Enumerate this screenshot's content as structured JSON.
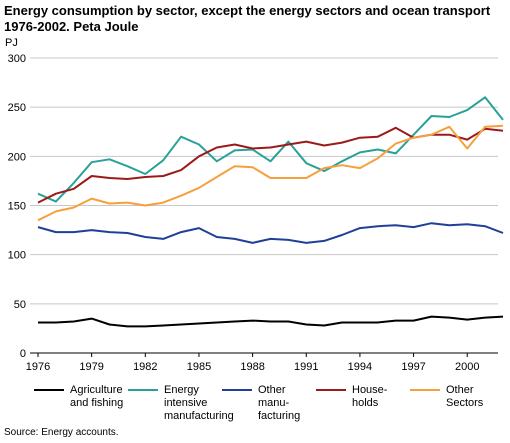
{
  "header": {
    "title_line1": "Energy consumption by sector, except the energy sectors and ocean transport",
    "title_line2": "1976-2002. Peta Joule"
  },
  "footer": {
    "source": "Source: Energy accounts."
  },
  "colors": {
    "agriculture": "#000000",
    "energy_intensive": "#2aa198",
    "other_manufacturing": "#1f3f99",
    "households": "#9b1b1b",
    "other_sectors": "#f5a03c",
    "grid": "#c8c8c8"
  },
  "chart_data": {
    "type": "line",
    "ylabel": "PJ",
    "ylim": [
      0,
      300
    ],
    "yticks": [
      0,
      50,
      100,
      150,
      200,
      250,
      300
    ],
    "xticks": [
      1976,
      1979,
      1982,
      1985,
      1988,
      1991,
      1994,
      1997,
      2000
    ],
    "grid": "horizontal",
    "legend_position": "bottom",
    "x": [
      1976,
      1977,
      1978,
      1979,
      1980,
      1981,
      1982,
      1983,
      1984,
      1985,
      1986,
      1987,
      1988,
      1989,
      1990,
      1991,
      1992,
      1993,
      1994,
      1995,
      1996,
      1997,
      1998,
      1999,
      2000,
      2001,
      2002
    ],
    "series": [
      {
        "name": "Agriculture and fishing",
        "key": "agriculture",
        "values": [
          31,
          31,
          32,
          35,
          29,
          27,
          27,
          28,
          29,
          30,
          31,
          32,
          33,
          32,
          32,
          29,
          28,
          31,
          31,
          31,
          33,
          33,
          37,
          36,
          34,
          36,
          37
        ]
      },
      {
        "name": "Energy intensive manufacturing",
        "key": "energy_intensive",
        "values": [
          162,
          154,
          173,
          194,
          197,
          190,
          182,
          196,
          220,
          212,
          195,
          206,
          207,
          195,
          215,
          193,
          185,
          195,
          204,
          207,
          203,
          222,
          241,
          240,
          247,
          260,
          237
        ]
      },
      {
        "name": "Other manufacturing",
        "key": "other_manufacturing",
        "values": [
          128,
          123,
          123,
          125,
          123,
          122,
          118,
          116,
          123,
          127,
          118,
          116,
          112,
          116,
          115,
          112,
          114,
          120,
          127,
          129,
          130,
          128,
          132,
          130,
          131,
          129,
          122
        ]
      },
      {
        "name": "House-holds",
        "key": "households",
        "values": [
          153,
          162,
          167,
          180,
          178,
          177,
          179,
          180,
          186,
          200,
          209,
          212,
          208,
          209,
          212,
          215,
          211,
          214,
          219,
          220,
          229,
          219,
          222,
          222,
          217,
          228,
          226
        ]
      },
      {
        "name": "Other Sectors",
        "key": "other_sectors",
        "values": [
          135,
          144,
          148,
          157,
          152,
          153,
          150,
          153,
          160,
          168,
          179,
          190,
          189,
          178,
          178,
          178,
          188,
          191,
          188,
          198,
          213,
          219,
          222,
          230,
          208,
          230,
          231
        ]
      }
    ],
    "legend": [
      {
        "key": "agriculture",
        "label": "Agriculture\nand fishing"
      },
      {
        "key": "energy_intensive",
        "label": "Energy\nintensive\nmanufacturing"
      },
      {
        "key": "other_manufacturing",
        "label": "Other\nmanu-\nfacturing"
      },
      {
        "key": "households",
        "label": "House-\nholds"
      },
      {
        "key": "other_sectors",
        "label": "Other\nSectors"
      }
    ]
  }
}
